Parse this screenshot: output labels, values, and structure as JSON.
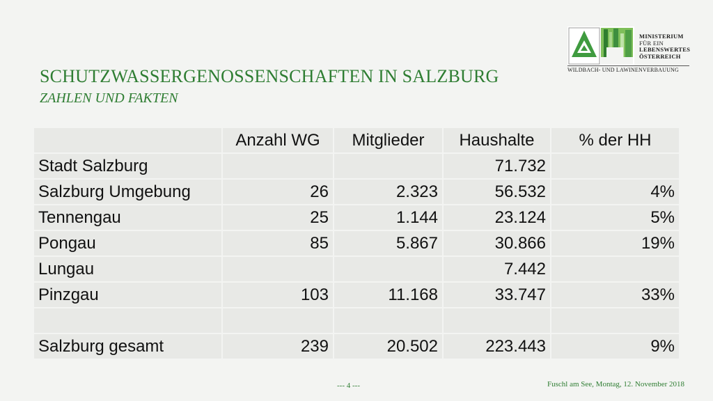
{
  "header": {
    "title": "SCHUTZWASSERGENOSSENSCHAFTEN  IN SALZBURG",
    "subtitle": "ZAHLEN UND FAKTEN"
  },
  "logo": {
    "lines": [
      "MINISTERIUM",
      "FÜR EIN",
      "LEBENSWERTES",
      "ÖSTERREICH"
    ],
    "subline": "WILDBACH- UND LAWINENVERBAUUNG"
  },
  "table": {
    "columns": [
      "",
      "Anzahl  WG",
      "Mitglieder",
      "Haushalte",
      "% der HH"
    ],
    "rows": [
      [
        "Stadt Salzburg",
        "",
        "",
        "71.732",
        ""
      ],
      [
        "Salzburg Umgebung",
        "26",
        "2.323",
        "56.532",
        "4%"
      ],
      [
        "Tennengau",
        "25",
        "1.144",
        "23.124",
        "5%"
      ],
      [
        "Pongau",
        "85",
        "5.867",
        "30.866",
        "19%"
      ],
      [
        "Lungau",
        "",
        "",
        "7.442",
        ""
      ],
      [
        "Pinzgau",
        "103",
        "11.168",
        "33.747",
        "33%"
      ],
      [
        "",
        "",
        "",
        "",
        ""
      ],
      [
        "Salzburg gesamt",
        "239",
        "20.502",
        "223.443",
        "9%"
      ]
    ]
  },
  "footer": {
    "page": "---   4   ---",
    "date": "Fuschl am See, Montag, 12. November 2018"
  },
  "colors": {
    "accent": "#2e7d32",
    "background": "#f3f4f2",
    "cell": "#e8e9e6"
  }
}
